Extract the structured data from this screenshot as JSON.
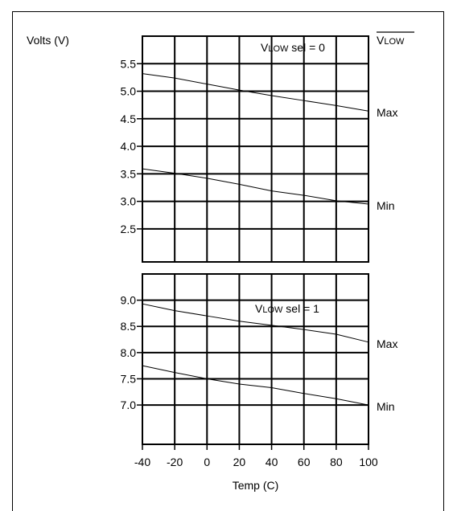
{
  "chart_data": [
    {
      "type": "line",
      "ylabel": "Volts (V)",
      "header_label": "VLOW",
      "annotation": {
        "prefix": "V",
        "smallcaps": "LOW",
        "suffix": " sel = 0"
      },
      "x": [
        -40,
        -20,
        0,
        20,
        40,
        60,
        80,
        100
      ],
      "xlim": [
        -40,
        100
      ],
      "ylim": [
        1.9,
        6.0
      ],
      "yticks": [
        "5.5",
        "5.0",
        "4.5",
        "4.0",
        "3.5",
        "3.0",
        "2.5"
      ],
      "grid": true,
      "series": [
        {
          "name": "Max",
          "x": [
            -40,
            -20,
            0,
            20,
            40,
            60,
            80,
            100
          ],
          "values": [
            5.32,
            5.24,
            5.13,
            5.02,
            4.92,
            4.83,
            4.74,
            4.64
          ]
        },
        {
          "name": "Min",
          "x": [
            -40,
            -20,
            0,
            20,
            40,
            60,
            80,
            100
          ],
          "values": [
            3.59,
            3.51,
            3.42,
            3.31,
            3.19,
            3.11,
            3.01,
            2.95
          ]
        }
      ]
    },
    {
      "type": "line",
      "annotation": {
        "prefix": "V",
        "smallcaps": "LOW",
        "suffix": " sel = 1"
      },
      "x": [
        -40,
        -20,
        0,
        20,
        40,
        60,
        80,
        100
      ],
      "xlim": [
        -40,
        100
      ],
      "ylim": [
        6.25,
        9.5
      ],
      "yticks": [
        "9.0",
        "8.5",
        "8.0",
        "7.5",
        "7.0"
      ],
      "xticks": [
        "-40",
        "-20",
        "0",
        "20",
        "40",
        "60",
        "80",
        "100"
      ],
      "xlabel": "Temp (C)",
      "grid": true,
      "series": [
        {
          "name": "Max",
          "x": [
            -40,
            -20,
            0,
            20,
            40,
            60,
            80,
            100
          ],
          "values": [
            8.93,
            8.8,
            8.7,
            8.6,
            8.52,
            8.44,
            8.35,
            8.2
          ]
        },
        {
          "name": "Min",
          "x": [
            -40,
            -20,
            0,
            20,
            40,
            60,
            80,
            100
          ],
          "values": [
            7.75,
            7.62,
            7.5,
            7.4,
            7.33,
            7.22,
            7.12,
            7.0
          ]
        }
      ]
    }
  ]
}
